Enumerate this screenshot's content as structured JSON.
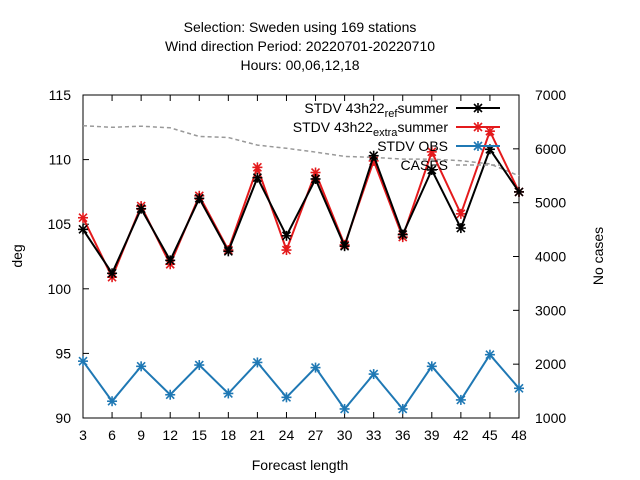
{
  "chart_data": {
    "type": "line",
    "title_lines": [
      "Selection: Sweden using   169 stations",
      "Wind direction   Period: 20220701-20220710",
      "Hours: 00,06,12,18"
    ],
    "xlabel": "Forecast length",
    "ylabel": "deg",
    "y2label": "No cases",
    "x": [
      3,
      6,
      9,
      12,
      15,
      18,
      21,
      24,
      27,
      30,
      33,
      36,
      39,
      42,
      45,
      48
    ],
    "xlim": [
      3,
      48
    ],
    "ylim": [
      90,
      115
    ],
    "y2lim": [
      1000,
      7000
    ],
    "yticks": [
      90,
      95,
      100,
      105,
      110,
      115
    ],
    "y2ticks": [
      1000,
      2000,
      3000,
      4000,
      5000,
      6000,
      7000
    ],
    "grid": false,
    "legend_position": "top-right",
    "series": [
      {
        "name": "STDV 43h22_ref_summer",
        "axis": "y1",
        "color": "#000000",
        "values": [
          104.6,
          101.2,
          106.2,
          102.2,
          107.0,
          102.9,
          108.6,
          104.1,
          108.5,
          103.3,
          110.3,
          104.2,
          109.2,
          104.7,
          110.8,
          107.5
        ]
      },
      {
        "name": "STDV 43h22_extra_summer",
        "axis": "y1",
        "color": "#e41a1c",
        "values": [
          105.5,
          100.9,
          106.4,
          101.9,
          107.2,
          103.0,
          109.4,
          103.0,
          109.0,
          103.4,
          109.9,
          104.0,
          110.6,
          105.8,
          112.2,
          107.5
        ]
      },
      {
        "name": "STDV OBS",
        "axis": "y1",
        "color": "#1f78b4",
        "values": [
          94.4,
          91.3,
          94.0,
          91.8,
          94.1,
          91.9,
          94.3,
          91.6,
          93.9,
          90.7,
          93.4,
          90.7,
          94.0,
          91.4,
          94.9,
          92.3
        ]
      },
      {
        "name": "CASES",
        "axis": "y2",
        "color": "#999999",
        "dashed": true,
        "values": [
          6430,
          6400,
          6420,
          6390,
          6230,
          6210,
          6070,
          6010,
          5940,
          5860,
          5840,
          5810,
          5810,
          5780,
          5720,
          5500
        ]
      }
    ],
    "legend": [
      {
        "label_parts": [
          {
            "t": "STDV 43h22"
          },
          {
            "t": "ref",
            "sub": true
          },
          {
            "t": "summer"
          }
        ],
        "series": 0
      },
      {
        "label_parts": [
          {
            "t": "STDV 43h22"
          },
          {
            "t": "extra",
            "sub": true
          },
          {
            "t": "summer"
          }
        ],
        "series": 1
      },
      {
        "label_parts": [
          {
            "t": "STDV OBS"
          }
        ],
        "series": 2
      },
      {
        "label_parts": [
          {
            "t": "CASES"
          }
        ],
        "series": 3
      }
    ]
  }
}
